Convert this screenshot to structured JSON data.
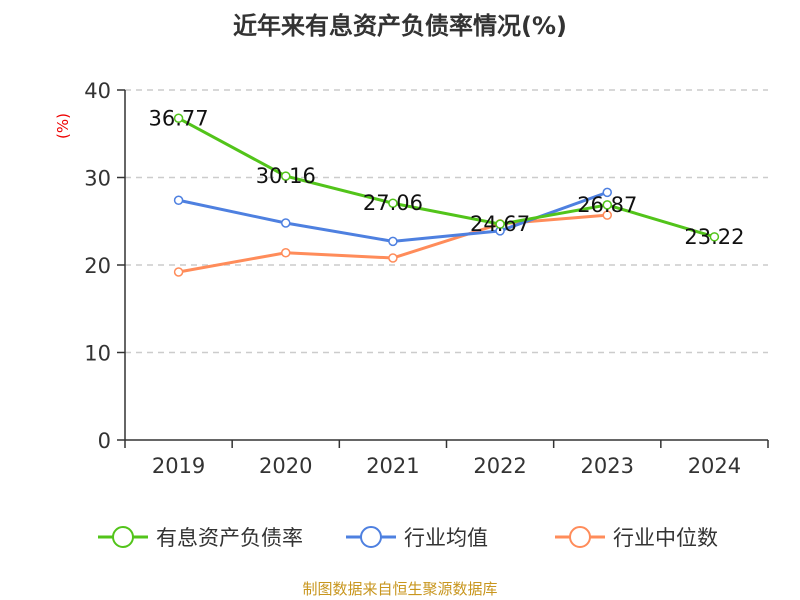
{
  "chart_data": {
    "type": "line",
    "title": "近年来有息资产负债率情况(%)",
    "ylabel": "(%)",
    "categories": [
      "2019",
      "2020",
      "2021",
      "2022",
      "2023",
      "2024"
    ],
    "ylim": [
      0,
      40
    ],
    "yticks": [
      0,
      10,
      20,
      30,
      40
    ],
    "grid": true,
    "legend_position": "bottom",
    "series": [
      {
        "name": "有息资产负债率",
        "color": "#52c41a",
        "values": [
          36.77,
          30.16,
          27.06,
          24.67,
          26.87,
          23.22
        ],
        "labels": [
          "36.77",
          "30.16",
          "27.06",
          "24.67",
          "26.87",
          "23.22"
        ]
      },
      {
        "name": "行业均值",
        "color": "#4e80e0",
        "values": [
          27.4,
          24.8,
          22.7,
          23.9,
          28.3,
          null
        ]
      },
      {
        "name": "行业中位数",
        "color": "#ff8c5a",
        "values": [
          19.2,
          21.4,
          20.8,
          24.7,
          25.7,
          null
        ]
      }
    ],
    "source": "制图数据来自恒生聚源数据库"
  }
}
